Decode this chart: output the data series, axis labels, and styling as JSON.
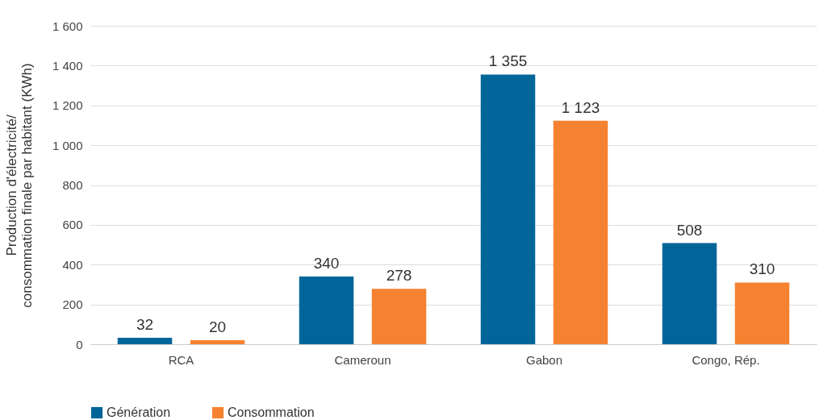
{
  "chart_data": {
    "type": "bar",
    "ylabel": "Production d'électricité/ consommation finale par habitant (KWh)",
    "categories": [
      "RCA",
      "Cameroun",
      "Gabon",
      "Congo, Rép."
    ],
    "series": [
      {
        "name": "Génération",
        "color": "#00669a",
        "values": [
          32,
          340,
          1355,
          508
        ],
        "value_labels": [
          "32",
          "340",
          "1 355",
          "508"
        ]
      },
      {
        "name": "Consommation",
        "color": "#f58231",
        "values": [
          20,
          278,
          1123,
          310
        ],
        "value_labels": [
          "20",
          "278",
          "1 123",
          "310"
        ]
      }
    ],
    "ylim": [
      0,
      1600
    ],
    "yticks": [
      0,
      {
        "value": 200,
        "label": "200"
      },
      {
        "value": 400,
        "label": "400"
      },
      {
        "value": 600,
        "label": "600"
      },
      {
        "value": 800,
        "label": "800"
      },
      {
        "value": 1000,
        "label": "1 000"
      },
      {
        "value": 1200,
        "label": "1 200"
      },
      {
        "value": 1400,
        "label": "1 400"
      },
      {
        "value": 1600,
        "label": "1 600"
      }
    ],
    "grid": "y",
    "legend": "bottom"
  }
}
